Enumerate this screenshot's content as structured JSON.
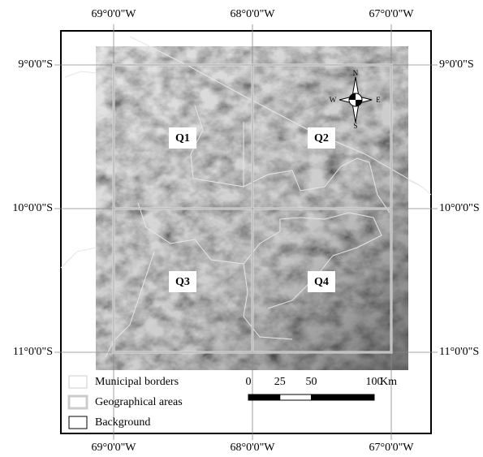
{
  "map": {
    "longitude_labels": [
      "69°0'0\"W",
      "68°0'0\"W",
      "67°0'0\"W"
    ],
    "latitude_labels": [
      "9°0'0\"S",
      "10°0'0\"S",
      "11°0'0\"S"
    ],
    "quadrants": [
      "Q1",
      "Q2",
      "Q3",
      "Q4"
    ],
    "compass": {
      "north": "N",
      "south": "S",
      "east": "E",
      "west": "W"
    },
    "legend": [
      "Municipal borders",
      "Geographical areas",
      "Background"
    ],
    "scale_bar": {
      "ticks": [
        0,
        25,
        50,
        100
      ],
      "unit": "Km"
    }
  }
}
